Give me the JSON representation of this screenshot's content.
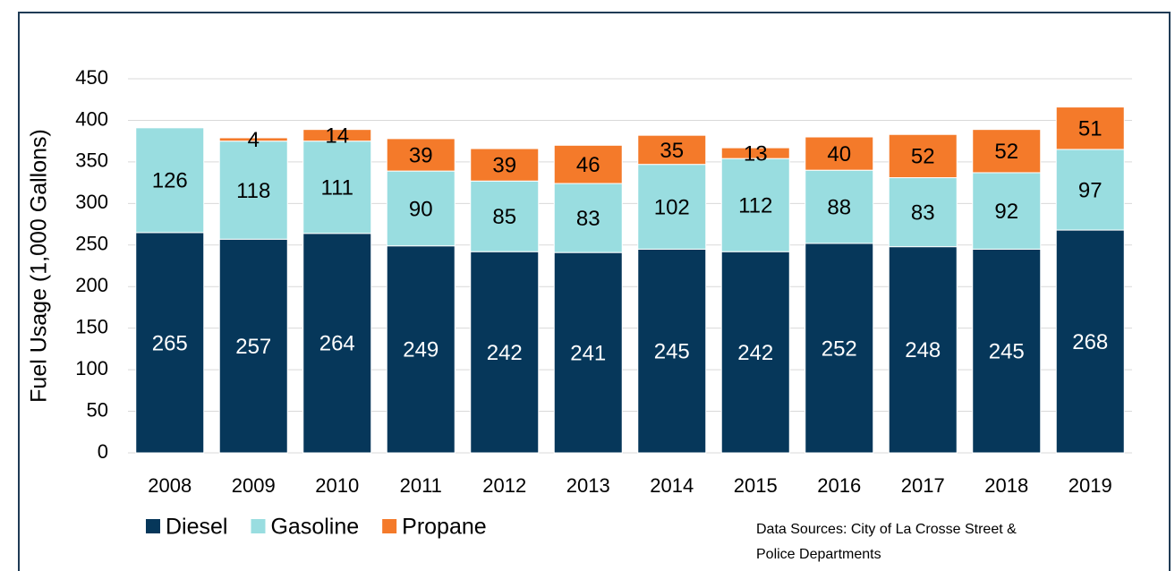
{
  "chart_data": {
    "type": "stacked_bar",
    "y_label": "Fuel Usage (1,000 Gallons)",
    "categories": [
      "2008",
      "2009",
      "2010",
      "2011",
      "2012",
      "2013",
      "2014",
      "2015",
      "2016",
      "2017",
      "2018",
      "2019"
    ],
    "series": [
      {
        "name": "Diesel",
        "color": "#06375a",
        "label_color": "#ffffff",
        "values": [
          265,
          257,
          264,
          249,
          242,
          241,
          245,
          242,
          252,
          248,
          245,
          268
        ]
      },
      {
        "name": "Gasoline",
        "color": "#99dde0",
        "label_color": "#000000",
        "values": [
          126,
          118,
          111,
          90,
          85,
          83,
          102,
          112,
          88,
          83,
          92,
          97
        ]
      },
      {
        "name": "Propane",
        "color": "#f47a2a",
        "label_color": "#000000",
        "values": [
          null,
          4,
          14,
          39,
          39,
          46,
          35,
          13,
          40,
          52,
          52,
          51
        ]
      }
    ],
    "ylim": [
      0,
      450
    ],
    "yticks": [
      0,
      50,
      100,
      150,
      200,
      250,
      300,
      350,
      400,
      450
    ],
    "grid": true,
    "note": [
      "Data Sources: City of La Crosse Street &",
      "Police Departments"
    ]
  }
}
